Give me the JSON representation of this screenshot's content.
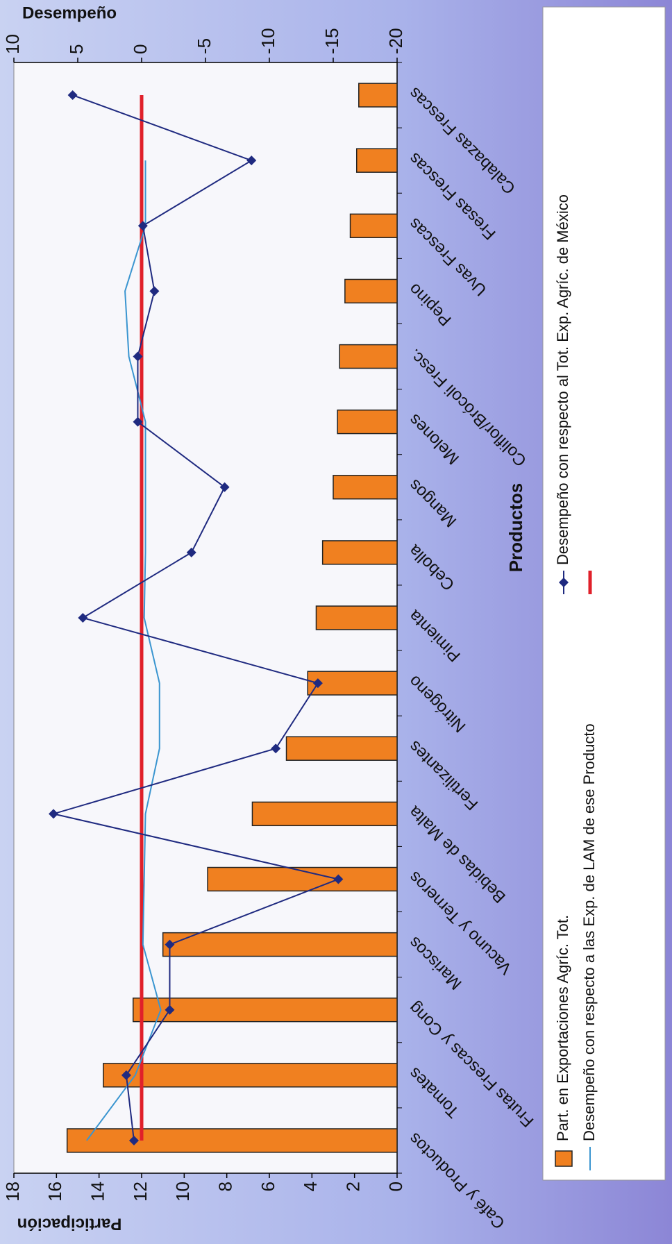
{
  "chart_data": {
    "type": "bar",
    "x_label": "Productos",
    "y_label": "Participación",
    "y2_label": "Desempeño",
    "categories": [
      "Café y Productos",
      "Tomates",
      "Frutas Frescas y Cong",
      "Mariscos",
      "Vacuno y Terneros",
      "Bebidas de Malta",
      "Fertilizantes",
      "Nitrógeno",
      "Pimienta",
      "Cebolla",
      "Mangos",
      "Melones",
      "Coliflor/Brócoli Fresc.",
      "Pepino",
      "Uvas Frescas",
      "Fresas Frescas",
      "Calabazas Frescas"
    ],
    "series": [
      {
        "name": "Part. en Exportaciones Agríc. Tot.",
        "type": "bar",
        "color": "#f08020",
        "values": [
          15.5,
          13.8,
          12.4,
          11.0,
          8.9,
          6.8,
          5.2,
          4.2,
          3.8,
          3.5,
          3.0,
          2.8,
          2.7,
          2.45,
          2.2,
          1.9,
          1.8
        ]
      },
      {
        "name": "Desempeño con respecto a las Exp. de LAM de ese Producto",
        "type": "line",
        "axis": "y2",
        "color": "#3a95d0",
        "values": [
          4.3,
          0.5,
          -1.5,
          -0.1,
          -0.2,
          -0.3,
          -1.4,
          -1.4,
          -0.2,
          -0.3,
          -0.3,
          -0.3,
          1.0,
          1.3,
          -0.3,
          -0.3,
          null
        ]
      },
      {
        "name": "Desempeño con respecto al Tot. Exp. Agríc. de México",
        "type": "line",
        "axis": "y2",
        "color": "#1f2a80",
        "marker": "diamond",
        "values": [
          0.6,
          1.2,
          -2.2,
          -2.2,
          -15.4,
          6.9,
          -10.5,
          -13.8,
          4.6,
          -3.9,
          -6.5,
          0.3,
          0.3,
          -1.0,
          -0.1,
          -8.6,
          5.4
        ]
      },
      {
        "type": "line",
        "axis": "y2",
        "color": "#e0202a",
        "values": [
          0,
          0,
          0,
          0,
          0,
          0,
          0,
          0,
          0,
          0,
          0,
          0,
          0,
          0,
          0,
          0,
          0
        ]
      }
    ],
    "ylim": [
      0,
      18
    ],
    "yticks": [
      0,
      2,
      4,
      6,
      8,
      10,
      12,
      14,
      16,
      18
    ],
    "y2lim": [
      -20,
      10
    ],
    "y2ticks": [
      -20,
      -15,
      -10,
      -5,
      0,
      5,
      10
    ],
    "rotation": -90
  }
}
